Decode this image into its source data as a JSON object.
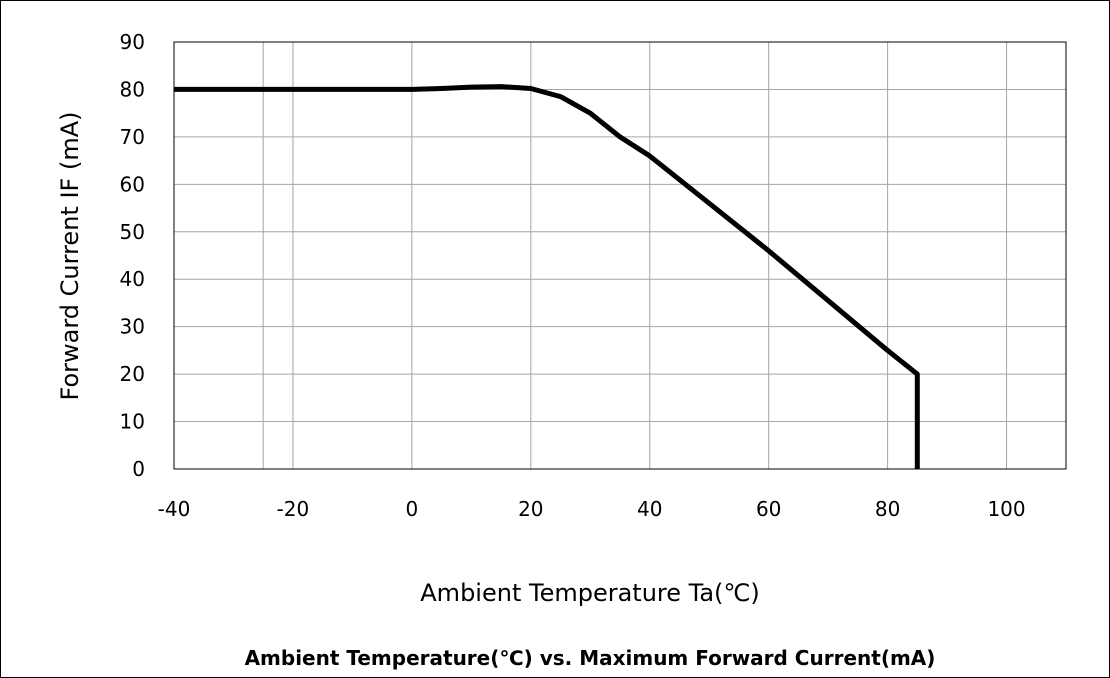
{
  "chart_data": {
    "type": "line",
    "title": "Ambient Temperature(℃) vs. Maximum Forward Current(mA)",
    "xlabel": "Ambient Temperature Ta(℃)",
    "ylabel": "Forward Current IF (mA)",
    "xlim": [
      -40,
      110
    ],
    "ylim": [
      0,
      90
    ],
    "x_ticks": [
      -40,
      -20,
      0,
      20,
      40,
      60,
      80,
      100
    ],
    "y_ticks": [
      0,
      10,
      20,
      30,
      40,
      50,
      60,
      70,
      80,
      90
    ],
    "x_gridlines": [
      -40,
      -25,
      -20,
      0,
      20,
      40,
      60,
      80,
      100,
      110
    ],
    "grid": true,
    "legend": "none",
    "colors": {
      "line": "#000000",
      "grid": "#a6a6a6",
      "frame": "#000000"
    },
    "series": [
      {
        "x": [
          -40,
          -20,
          0,
          5,
          10,
          15,
          20,
          25,
          30,
          35,
          40,
          50,
          60,
          70,
          80,
          85,
          85
        ],
        "y": [
          80,
          80,
          80,
          80.2,
          80.5,
          80.6,
          80.2,
          78.5,
          75,
          70,
          66,
          56,
          46,
          35.5,
          25,
          20,
          0
        ]
      }
    ]
  }
}
